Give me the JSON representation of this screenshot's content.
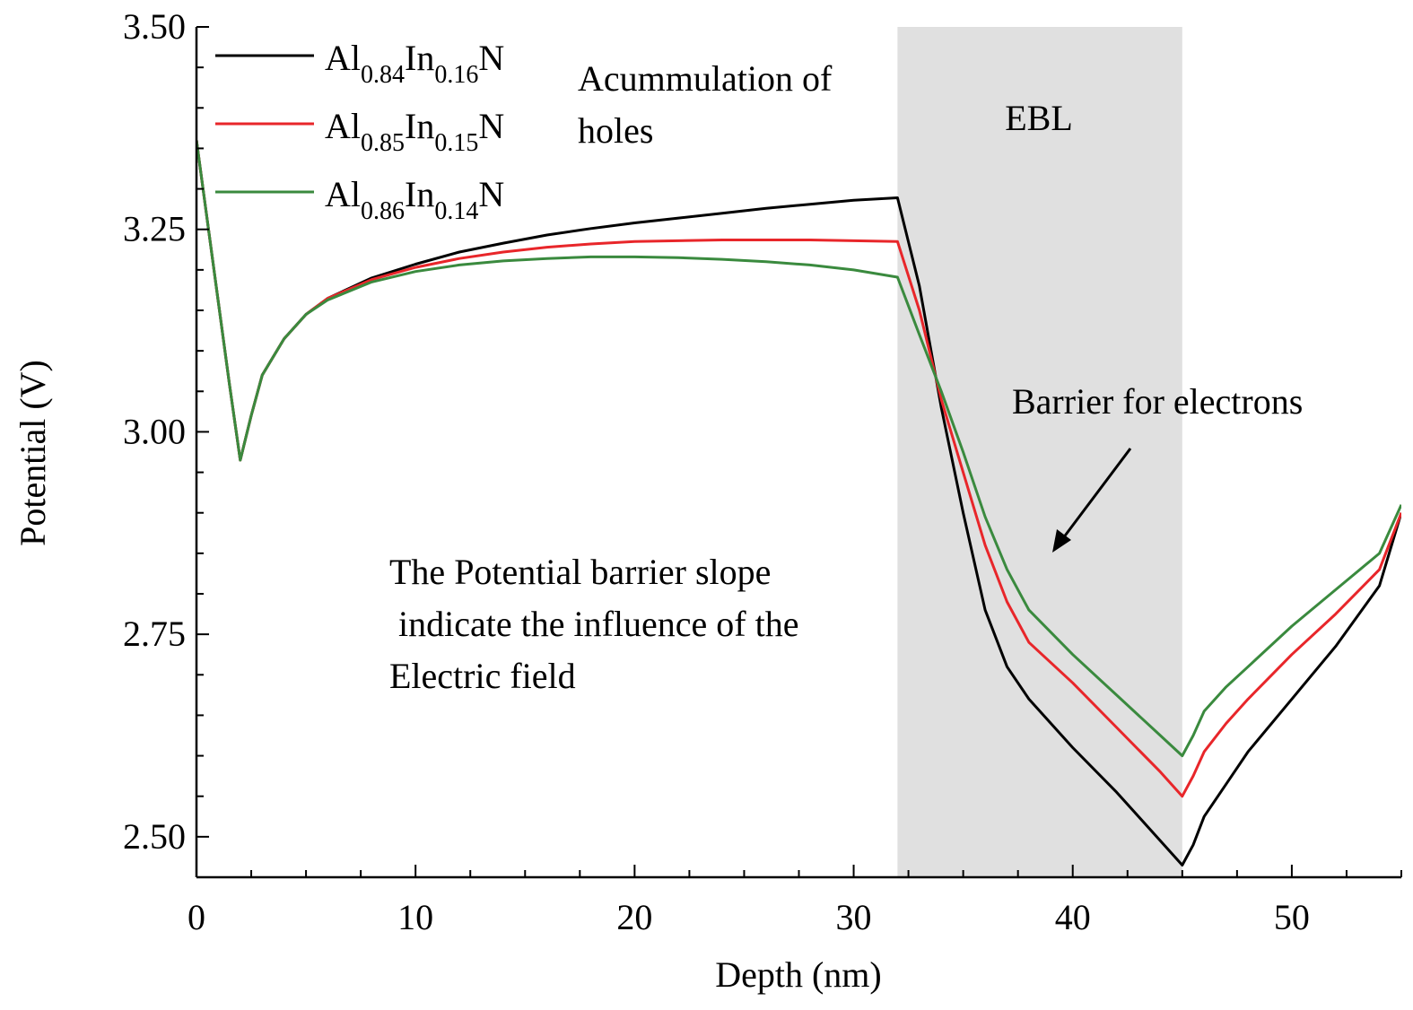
{
  "chart_data": {
    "type": "line",
    "xlabel": "Depth (nm)",
    "ylabel": "Potential (V)",
    "xlim": [
      0,
      55
    ],
    "ylim": [
      2.45,
      3.5
    ],
    "x_ticks": [
      "0",
      "10",
      "20",
      "30",
      "40",
      "50"
    ],
    "y_ticks": [
      "2.50",
      "2.75",
      "3.00",
      "3.25",
      "3.50"
    ],
    "shaded_region": {
      "label": "EBL",
      "x_start": 32,
      "x_end": 45,
      "color": "#e0e0e0"
    },
    "series": [
      {
        "name_parts": {
          "a": "Al",
          "a_sub": "0.84",
          "b": "In",
          "b_sub": "0.16",
          "c": "N"
        },
        "color": "#000000",
        "points": [
          [
            0,
            3.36
          ],
          [
            0.5,
            3.26
          ],
          [
            1,
            3.16
          ],
          [
            1.5,
            3.06
          ],
          [
            2,
            2.965
          ],
          [
            2.5,
            3.02
          ],
          [
            3,
            3.07
          ],
          [
            4,
            3.115
          ],
          [
            5,
            3.145
          ],
          [
            6,
            3.165
          ],
          [
            8,
            3.19
          ],
          [
            10,
            3.207
          ],
          [
            12,
            3.222
          ],
          [
            14,
            3.233
          ],
          [
            16,
            3.243
          ],
          [
            18,
            3.251
          ],
          [
            20,
            3.258
          ],
          [
            22,
            3.264
          ],
          [
            24,
            3.27
          ],
          [
            26,
            3.276
          ],
          [
            28,
            3.281
          ],
          [
            30,
            3.286
          ],
          [
            32,
            3.289
          ],
          [
            33,
            3.18
          ],
          [
            34,
            3.03
          ],
          [
            35,
            2.9
          ],
          [
            36,
            2.78
          ],
          [
            37,
            2.71
          ],
          [
            38,
            2.67
          ],
          [
            40,
            2.61
          ],
          [
            42,
            2.555
          ],
          [
            44,
            2.495
          ],
          [
            45,
            2.465
          ],
          [
            45.5,
            2.49
          ],
          [
            46,
            2.525
          ],
          [
            47,
            2.565
          ],
          [
            48,
            2.605
          ],
          [
            50,
            2.67
          ],
          [
            52,
            2.735
          ],
          [
            54,
            2.81
          ],
          [
            55,
            2.9
          ]
        ]
      },
      {
        "name_parts": {
          "a": "Al",
          "a_sub": "0.85",
          "b": "In",
          "b_sub": "0.15",
          "c": "N"
        },
        "color": "#e8262a",
        "points": [
          [
            0,
            3.36
          ],
          [
            0.5,
            3.26
          ],
          [
            1,
            3.16
          ],
          [
            1.5,
            3.06
          ],
          [
            2,
            2.965
          ],
          [
            2.5,
            3.02
          ],
          [
            3,
            3.07
          ],
          [
            4,
            3.115
          ],
          [
            5,
            3.145
          ],
          [
            6,
            3.165
          ],
          [
            8,
            3.188
          ],
          [
            10,
            3.203
          ],
          [
            12,
            3.214
          ],
          [
            14,
            3.222
          ],
          [
            16,
            3.228
          ],
          [
            18,
            3.232
          ],
          [
            20,
            3.235
          ],
          [
            22,
            3.236
          ],
          [
            24,
            3.237
          ],
          [
            26,
            3.237
          ],
          [
            28,
            3.237
          ],
          [
            30,
            3.236
          ],
          [
            32,
            3.235
          ],
          [
            33,
            3.15
          ],
          [
            34,
            3.04
          ],
          [
            35,
            2.95
          ],
          [
            36,
            2.86
          ],
          [
            37,
            2.79
          ],
          [
            38,
            2.74
          ],
          [
            40,
            2.69
          ],
          [
            42,
            2.635
          ],
          [
            44,
            2.58
          ],
          [
            45,
            2.55
          ],
          [
            45.5,
            2.575
          ],
          [
            46,
            2.605
          ],
          [
            47,
            2.64
          ],
          [
            48,
            2.67
          ],
          [
            50,
            2.725
          ],
          [
            52,
            2.775
          ],
          [
            54,
            2.83
          ],
          [
            55,
            2.9
          ]
        ]
      },
      {
        "name_parts": {
          "a": "Al",
          "a_sub": "0.86",
          "b": "In",
          "b_sub": "0.14",
          "c": "N"
        },
        "color": "#3a8a3e",
        "points": [
          [
            0,
            3.36
          ],
          [
            0.5,
            3.26
          ],
          [
            1,
            3.16
          ],
          [
            1.5,
            3.06
          ],
          [
            2,
            2.965
          ],
          [
            2.5,
            3.02
          ],
          [
            3,
            3.07
          ],
          [
            4,
            3.115
          ],
          [
            5,
            3.145
          ],
          [
            6,
            3.163
          ],
          [
            8,
            3.185
          ],
          [
            10,
            3.198
          ],
          [
            12,
            3.206
          ],
          [
            14,
            3.211
          ],
          [
            16,
            3.214
          ],
          [
            18,
            3.216
          ],
          [
            20,
            3.216
          ],
          [
            22,
            3.215
          ],
          [
            24,
            3.213
          ],
          [
            26,
            3.21
          ],
          [
            28,
            3.206
          ],
          [
            30,
            3.2
          ],
          [
            32,
            3.191
          ],
          [
            33,
            3.12
          ],
          [
            34,
            3.05
          ],
          [
            35,
            2.975
          ],
          [
            36,
            2.895
          ],
          [
            37,
            2.83
          ],
          [
            38,
            2.78
          ],
          [
            40,
            2.725
          ],
          [
            42,
            2.675
          ],
          [
            44,
            2.625
          ],
          [
            45,
            2.6
          ],
          [
            45.5,
            2.625
          ],
          [
            46,
            2.655
          ],
          [
            47,
            2.685
          ],
          [
            48,
            2.71
          ],
          [
            50,
            2.76
          ],
          [
            52,
            2.805
          ],
          [
            54,
            2.85
          ],
          [
            55,
            2.91
          ]
        ]
      }
    ],
    "annotations": {
      "accumulation_line1": "Acummulation of",
      "accumulation_line2": "holes",
      "barrier": "Barrier for electrons",
      "slope_line1": "The Potential barrier slope",
      "slope_line2": " indicate the influence of the",
      "slope_line3": "Electric field"
    }
  }
}
